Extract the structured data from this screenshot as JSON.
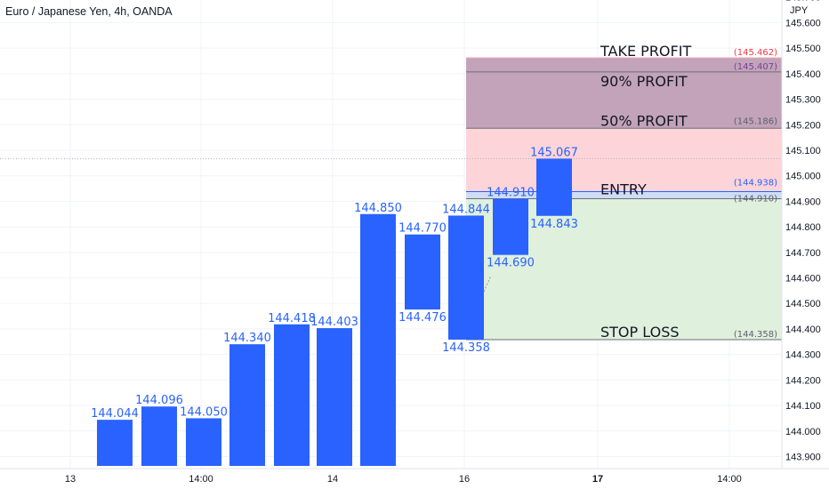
{
  "header": {
    "title": "Euro / Japanese Yen, 4h, OANDA"
  },
  "chart_data": {
    "type": "bar",
    "title": "Euro / Japanese Yen, 4h, OANDA",
    "currency_label": "JPY",
    "ylim": [
      143.86,
      145.79
    ],
    "y_ticks": [
      143.9,
      144.0,
      144.1,
      144.2,
      144.3,
      144.4,
      144.5,
      144.6,
      144.7,
      144.8,
      144.9,
      145.0,
      145.1,
      145.2,
      145.3,
      145.4,
      145.5,
      145.6,
      145.7
    ],
    "y_tick_labels": [
      "143.900",
      "144.000",
      "144.100",
      "144.200",
      "144.300",
      "144.400",
      "144.500",
      "144.600",
      "144.700",
      "144.800",
      "144.900",
      "145.000",
      "145.100",
      "145.200",
      "145.300",
      "145.400",
      "145.500",
      "145.600",
      "145.700"
    ],
    "x_ticks": [
      "13",
      "14:00",
      "14",
      "16",
      "17",
      "14:00"
    ],
    "grid": true,
    "current_price_line": 145.067,
    "bars": [
      {
        "low": 143.86,
        "high": 144.044,
        "top_label": "144.044",
        "bottom_label": ""
      },
      {
        "low": 143.86,
        "high": 144.096,
        "top_label": "144.096",
        "bottom_label": ""
      },
      {
        "low": 143.86,
        "high": 144.05,
        "top_label": "144.050",
        "bottom_label": ""
      },
      {
        "low": 143.86,
        "high": 144.34,
        "top_label": "144.340",
        "bottom_label": ""
      },
      {
        "low": 143.86,
        "high": 144.418,
        "top_label": "144.418",
        "bottom_label": ""
      },
      {
        "low": 143.86,
        "high": 144.403,
        "top_label": "144.403",
        "bottom_label": ""
      },
      {
        "low": 143.86,
        "high": 144.85,
        "top_label": "144.850",
        "bottom_label": ""
      },
      {
        "low": 144.476,
        "high": 144.77,
        "top_label": "144.770",
        "bottom_label": "144.476"
      },
      {
        "low": 144.358,
        "high": 144.844,
        "top_label": "144.844",
        "bottom_label": "144.358"
      },
      {
        "low": 144.69,
        "high": 144.91,
        "top_label": "144.910",
        "bottom_label": "144.690"
      },
      {
        "low": 144.843,
        "high": 145.067,
        "top_label": "145.067",
        "bottom_label": "144.843"
      }
    ],
    "zones": [
      {
        "name": "TAKE PROFIT",
        "price": 145.462,
        "price_label": "(145.462)",
        "color": "#f23645"
      },
      {
        "name": "90% PROFIT",
        "price": 145.407,
        "price_label": "(145.407)",
        "color": "#7b3f96"
      },
      {
        "name": "50% PROFIT",
        "price": 145.186,
        "price_label": "(145.186)",
        "color": "#5d606b"
      },
      {
        "name": "ENTRY",
        "price": 144.938,
        "price_label": "(144.938)",
        "color": "#2962ff"
      },
      {
        "name": "",
        "price": 144.91,
        "price_label": "(144.910)",
        "color": "#5d606b"
      },
      {
        "name": "STOP LOSS",
        "price": 144.358,
        "price_label": "(144.358)",
        "color": "#5d606b"
      }
    ],
    "colors": {
      "bar": "#2962ff",
      "profit_zone": "#fdd4d8",
      "profit_band": "#b79ab5",
      "stop_zone": "#dff0dd",
      "grid": "#f0f3fa"
    }
  }
}
